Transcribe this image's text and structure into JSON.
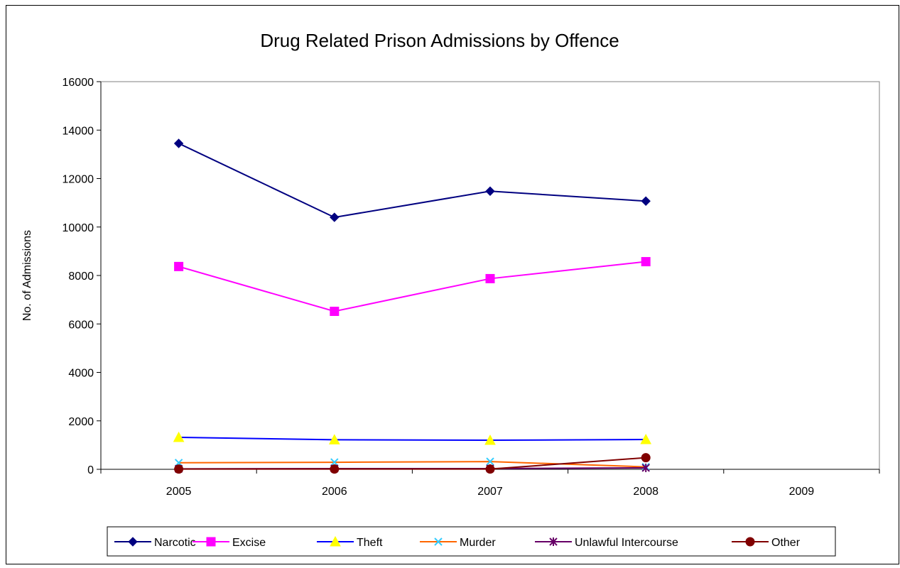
{
  "chart_data": {
    "type": "line",
    "title": "Drug Related Prison Admissions by Offence",
    "xlabel": "",
    "ylabel": "No. of Admissions",
    "categories": [
      "2005",
      "2006",
      "2007",
      "2008",
      "2009"
    ],
    "ylim": [
      0,
      16000
    ],
    "yticks": [
      0,
      2000,
      4000,
      6000,
      8000,
      10000,
      12000,
      14000,
      16000
    ],
    "grid": false,
    "legend": "bottom",
    "series": [
      {
        "name": "Narcotic",
        "color": "#000080",
        "marker": "diamond",
        "values": [
          13450,
          10400,
          11480,
          11070,
          null
        ]
      },
      {
        "name": "Excise",
        "color": "#ff00ff",
        "marker": "square",
        "values": [
          8370,
          6520,
          7870,
          8570,
          null
        ]
      },
      {
        "name": "Theft",
        "color": "#0000ff",
        "line_color": "#0000ff",
        "marker_color": "#ffff00",
        "marker": "triangle",
        "values": [
          1320,
          1220,
          1200,
          1230,
          null
        ]
      },
      {
        "name": "Murder",
        "color": "#ff6600",
        "marker_color": "#33ccff",
        "marker": "x",
        "values": [
          270,
          290,
          320,
          100,
          null
        ]
      },
      {
        "name": "Unlawful Intercourse",
        "color": "#660066",
        "marker_color": "#660066",
        "marker": "star",
        "values": [
          20,
          30,
          30,
          60,
          null
        ]
      },
      {
        "name": "Other",
        "color": "#800000",
        "marker": "circle",
        "values": [
          10,
          10,
          10,
          480,
          null
        ]
      }
    ]
  }
}
